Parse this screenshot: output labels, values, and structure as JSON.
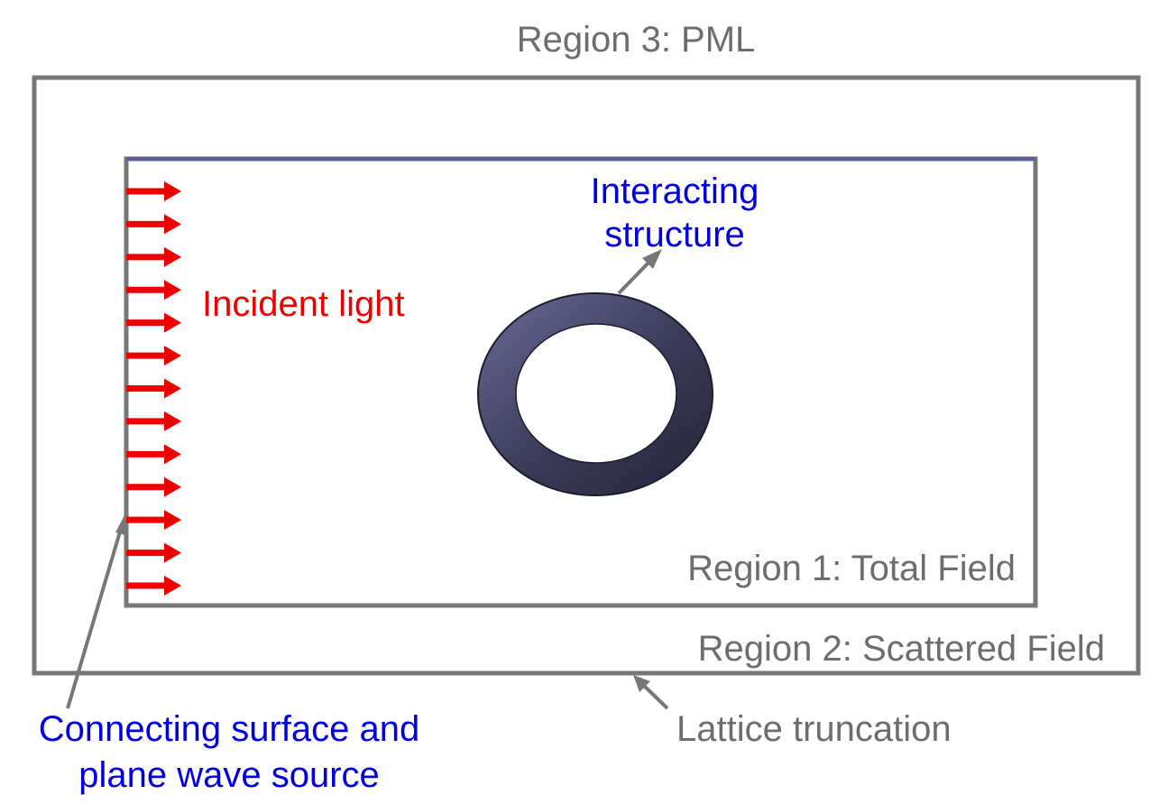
{
  "labels": {
    "pml": "Region 3: PML",
    "interacting_line1": "Interacting",
    "interacting_line2": "structure",
    "incident": "Incident light",
    "total_field": "Region 1: Total Field",
    "scattered_field": "Region 2: Scattered Field",
    "connecting_line1": "Connecting surface and",
    "connecting_line2": "plane wave source",
    "lattice": "Lattice truncation"
  },
  "incident_arrow_count": 13,
  "colors": {
    "frame": "#777777",
    "top_edge": "#5a5f96",
    "incident": "#ee0000",
    "annotation_blue": "#0000e0",
    "label_gray": "#6d6d6d",
    "ring_light": "#6a6a98",
    "ring_dark": "#24243a"
  }
}
